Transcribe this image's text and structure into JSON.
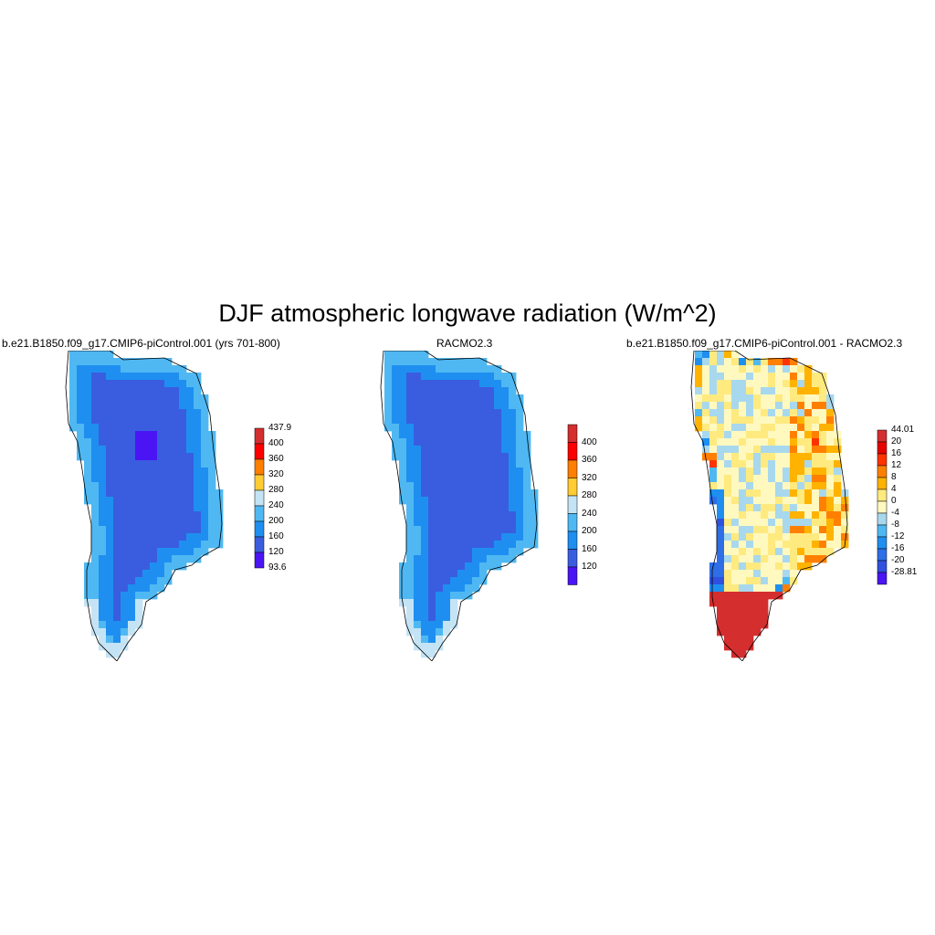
{
  "title": "DJF atmospheric longwave radiation (W/m^2)",
  "chart_data": [
    {
      "type": "heatmap",
      "title": "b.e21.B1850.f09_g17.CMIP6-piControl.001 (yrs 701-800)",
      "region": "Greenland",
      "colorbar": {
        "labels": [
          "437.9",
          "400",
          "360",
          "320",
          "280",
          "240",
          "200",
          "160",
          "120",
          "93.6"
        ],
        "colors": [
          "#d42e2e",
          "#ff0000",
          "#ff7f00",
          "#ffcc33",
          "#c4e4f5",
          "#4fb8f2",
          "#1e8ff0",
          "#3a5de0",
          "#4a14f5"
        ],
        "min": 93.6,
        "max": 437.9
      },
      "field_summary": {
        "interior": 140,
        "margin": 180,
        "edge": 220
      }
    },
    {
      "type": "heatmap",
      "title": "RACMO2.3",
      "region": "Greenland",
      "colorbar": {
        "labels": [
          "400",
          "360",
          "320",
          "280",
          "240",
          "200",
          "160",
          "120"
        ],
        "colors": [
          "#d42e2e",
          "#ff0000",
          "#ff7f00",
          "#ffcc33",
          "#c4e4f5",
          "#4fb8f2",
          "#1e8ff0",
          "#3a5de0",
          "#4a14f5"
        ]
      },
      "field_summary": {
        "interior": 140,
        "margin": 180,
        "edge": 220
      }
    },
    {
      "type": "heatmap",
      "title": "b.e21.B1850.f09_g17.CMIP6-piControl.001 - RACMO2.3",
      "region": "Greenland",
      "colorbar": {
        "labels": [
          "44.01",
          "20",
          "16",
          "12",
          "8",
          "4",
          "0",
          "-4",
          "-8",
          "-12",
          "-16",
          "-20",
          "-28.81"
        ],
        "colors": [
          "#d42e2e",
          "#e60000",
          "#ff3300",
          "#ff8000",
          "#ffb300",
          "#ffea80",
          "#fff9c0",
          "#a8d8ee",
          "#4fb8f2",
          "#1e8ff0",
          "#2e6ee6",
          "#3050e0",
          "#4a14f5"
        ],
        "min": -28.81,
        "max": 44.01
      }
    }
  ]
}
